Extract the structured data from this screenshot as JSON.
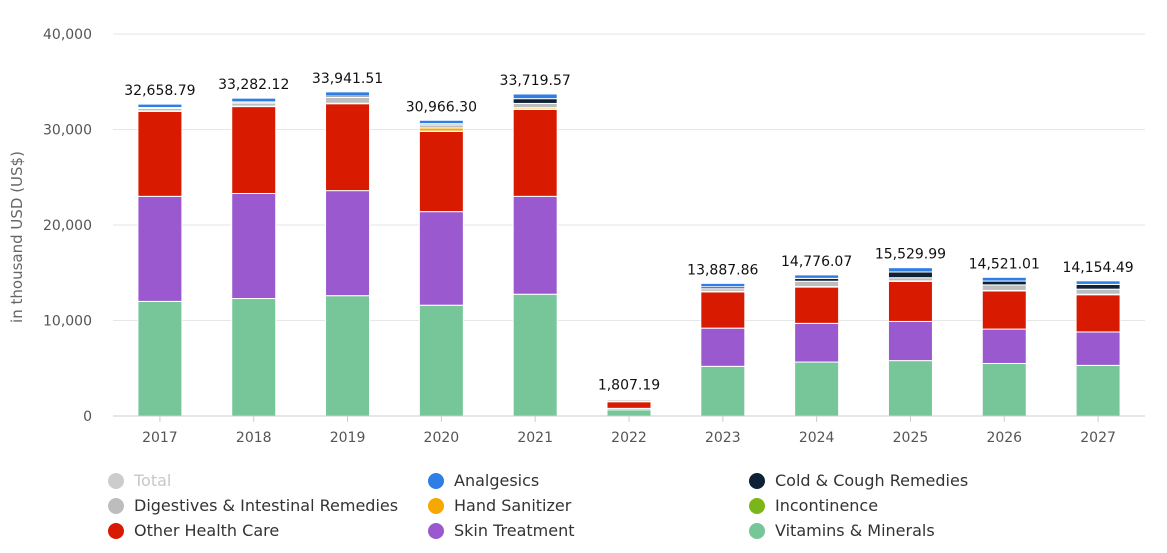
{
  "chart_data": {
    "type": "bar",
    "stacked": true,
    "ylabel": "in thousand USD (US$)",
    "ylim": [
      0,
      40000
    ],
    "yticks": [
      0,
      10000,
      20000,
      30000,
      40000
    ],
    "ytick_labels": [
      "0",
      "10,000",
      "20,000",
      "30,000",
      "40,000"
    ],
    "grid": true,
    "categories": [
      "2017",
      "2018",
      "2019",
      "2020",
      "2021",
      "2022",
      "2023",
      "2024",
      "2025",
      "2026",
      "2027"
    ],
    "totals": [
      32658.79,
      33282.12,
      33941.51,
      30966.3,
      33719.57,
      1807.19,
      13887.86,
      14776.07,
      15529.99,
      14521.01,
      14154.49
    ],
    "total_labels": [
      "32,658.79",
      "33,282.12",
      "33,941.51",
      "30,966.30",
      "33,719.57",
      "1,807.19",
      "13,887.86",
      "14,776.07",
      "15,529.99",
      "14,521.01",
      "14,154.49"
    ],
    "series": [
      {
        "name": "Vitamins & Minerals",
        "color": "#76c69a",
        "values": [
          12000,
          12300,
          12600,
          11600,
          12750,
          650,
          5200,
          5650,
          5800,
          5500,
          5300
        ]
      },
      {
        "name": "Skin Treatment",
        "color": "#9b59d0",
        "values": [
          11000,
          11000,
          11000,
          9800,
          10250,
          150,
          4000,
          4050,
          4100,
          3600,
          3500
        ]
      },
      {
        "name": "Other Health Care",
        "color": "#d81b00",
        "values": [
          8900,
          9100,
          9100,
          8400,
          9100,
          700,
          3800,
          3800,
          4200,
          4000,
          3900
        ]
      },
      {
        "name": "Incontinence",
        "color": "#7cb518",
        "values": [
          30,
          30,
          30,
          30,
          30,
          10,
          20,
          20,
          20,
          20,
          20
        ]
      },
      {
        "name": "Hand Sanitizer",
        "color": "#f7a800",
        "values": [
          20,
          20,
          20,
          330,
          150,
          5,
          30,
          30,
          30,
          30,
          30
        ]
      },
      {
        "name": "Digestives & Intestinal Remedies",
        "color": "#bdbdbd",
        "values": [
          250,
          320,
          600,
          320,
          450,
          170,
          280,
          560,
          330,
          580,
          530
        ]
      },
      {
        "name": "Cold & Cough Remedies",
        "color": "#0d2137",
        "values": [
          100,
          120,
          150,
          130,
          500,
          80,
          200,
          300,
          600,
          400,
          500
        ]
      },
      {
        "name": "Analgesics",
        "color": "#2f7ee6",
        "values": [
          358.79,
          392.12,
          441.51,
          356.3,
          489.57,
          42.19,
          357.86,
          366.07,
          449.99,
          391.01,
          374.49
        ]
      }
    ]
  },
  "legend": {
    "items": [
      {
        "label": "Total",
        "color": "#cccccc",
        "disabled": true
      },
      {
        "label": "Analgesics",
        "color": "#2f7ee6",
        "disabled": false
      },
      {
        "label": "Cold & Cough Remedies",
        "color": "#0d2137",
        "disabled": false
      },
      {
        "label": "Digestives & Intestinal Remedies",
        "color": "#bdbdbd",
        "disabled": false
      },
      {
        "label": "Hand Sanitizer",
        "color": "#f7a800",
        "disabled": false
      },
      {
        "label": "Incontinence",
        "color": "#7cb518",
        "disabled": false
      },
      {
        "label": "Other Health Care",
        "color": "#d81b00",
        "disabled": false
      },
      {
        "label": "Skin Treatment",
        "color": "#9b59d0",
        "disabled": false
      },
      {
        "label": "Vitamins & Minerals",
        "color": "#76c69a",
        "disabled": false
      }
    ]
  }
}
